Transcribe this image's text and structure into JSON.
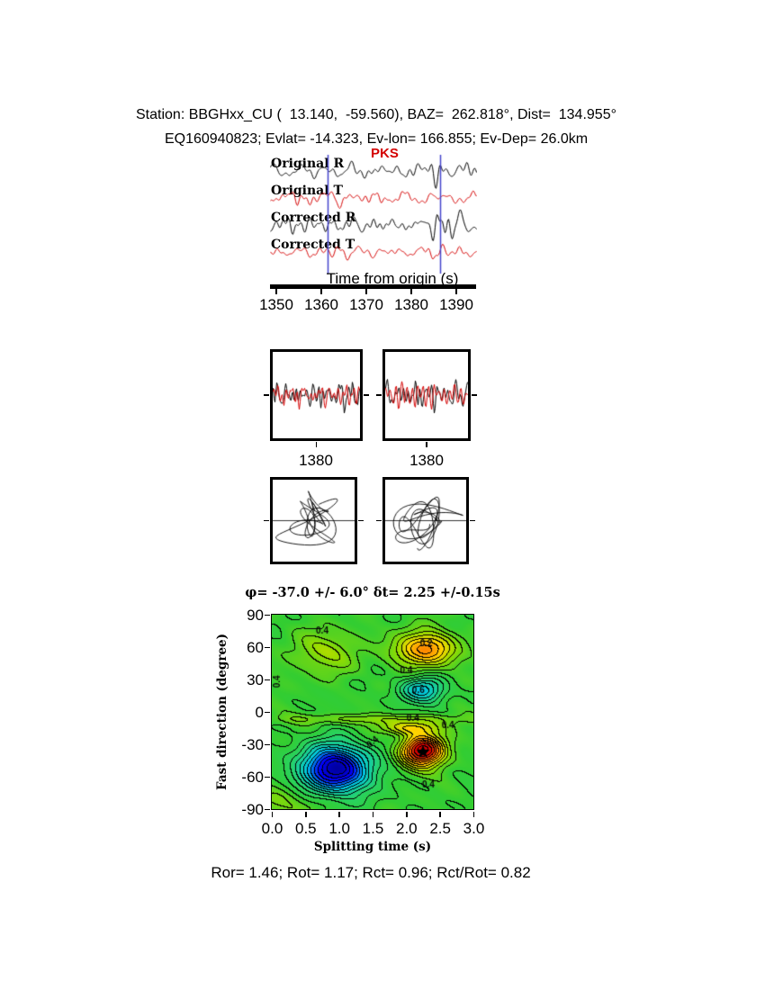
{
  "header": {
    "line1": "Station: BBGHxx_CU (  13.140,  -59.560), BAZ=  262.818°, Dist=  134.955°",
    "line2": "EQ160940823; Evlat= -14.323, Ev-lon= 166.855; Ev-Dep= 26.0km"
  },
  "footer": {
    "stats": "Ror= 1.46; Rot= 1.17; Rct= 0.96; Rct/Rot= 0.82"
  },
  "chart_data": [
    {
      "id": "waveform-traces",
      "type": "line",
      "phase_label": "PKS",
      "phase_color": "#d40000",
      "xlabel": "Time from origin (s)",
      "xlim": [
        1348.6,
        1394.6
      ],
      "xticks": [
        "1350",
        "1360",
        "1370",
        "1380",
        "1390"
      ],
      "window_lines": {
        "color": "#4444cc",
        "times": [
          1361.5,
          1386.5
        ]
      },
      "traces": [
        {
          "label": "Original R",
          "color": "#000000",
          "seed": 101,
          "amp": 11,
          "env": {
            "c": 0.84,
            "w": 0.1,
            "g": 1.1
          }
        },
        {
          "label": "Original T",
          "color": "#d40000",
          "seed": 207,
          "amp": 9,
          "env": {
            "c": 0.3,
            "w": 0.2,
            "g": 0.3
          }
        },
        {
          "label": "Corrected R",
          "color": "#000000",
          "seed": 313,
          "amp": 11,
          "env": {
            "c": 0.84,
            "w": 0.1,
            "g": 1.0
          }
        },
        {
          "label": "Corrected T",
          "color": "#d40000",
          "seed": 419,
          "amp": 8,
          "env": {
            "c": 0.5,
            "w": 0.3,
            "g": 0.2
          }
        }
      ]
    },
    {
      "id": "window-zoom",
      "type": "line",
      "panels": [
        {
          "xtick": "1380",
          "traces": [
            {
              "color": "#000000",
              "seed": 51,
              "amp": 20
            },
            {
              "color": "#d40000",
              "seed": 62,
              "amp": 16
            }
          ]
        },
        {
          "xtick": "1380",
          "traces": [
            {
              "color": "#000000",
              "seed": 73,
              "amp": 20
            },
            {
              "color": "#d40000",
              "seed": 84,
              "amp": 16
            }
          ]
        }
      ]
    },
    {
      "id": "particle-motion",
      "type": "scatter",
      "panels": [
        {
          "seed_x": 91,
          "seed_y": 15
        },
        {
          "seed_x": 27,
          "seed_y": 38
        }
      ]
    },
    {
      "id": "error-surface",
      "type": "heatmap",
      "title": "φ= -37.0 +/- 6.0° δt= 2.25 +/-0.15s",
      "xlabel": "Splitting time (s)",
      "ylabel": "Fast direction (degree)",
      "xlim": [
        0,
        3
      ],
      "ylim": [
        -90,
        90
      ],
      "xticks": [
        "0.0",
        "0.5",
        "1.0",
        "1.5",
        "2.0",
        "2.5",
        "3.0"
      ],
      "yticks": [
        "90",
        "60",
        "30",
        "0",
        "-30",
        "-60",
        "-90"
      ],
      "best_fit": {
        "phi": -37.0,
        "phi_err": 6.0,
        "dt": 2.25,
        "dt_err": 0.15
      },
      "star": {
        "x": 2.25,
        "y": -37
      },
      "base_level": 0.55,
      "contour_step": 0.045,
      "ripple": {
        "amp": 0.02,
        "fx": 6.0
      },
      "features": [
        {
          "x": 0.95,
          "y": -53,
          "amp": -0.55,
          "sx": 0.5,
          "sy": 22
        },
        {
          "x": 2.25,
          "y": -36,
          "amp": 0.5,
          "sx": 0.33,
          "sy": 15
        },
        {
          "x": 2.3,
          "y": 58,
          "amp": 0.32,
          "sx": 0.45,
          "sy": 16
        },
        {
          "x": 2.25,
          "y": 20,
          "amp": -0.25,
          "sx": 0.35,
          "sy": 12
        },
        {
          "x": 0.8,
          "y": 55,
          "amp": 0.12,
          "sx": 0.55,
          "sy": 20
        },
        {
          "x": 1.5,
          "y": -7,
          "amp": 0.1,
          "sx": 1.6,
          "sy": 5
        },
        {
          "x": 2.05,
          "y": -15,
          "amp": 0.18,
          "sx": 0.45,
          "sy": 6
        },
        {
          "x": 0.2,
          "y": -85,
          "amp": 0.1,
          "sx": 0.45,
          "sy": 15
        }
      ],
      "colormap_stops": [
        [
          0,
          "#0000a0"
        ],
        [
          0.12,
          "#0000ff"
        ],
        [
          0.28,
          "#00c8e6"
        ],
        [
          0.45,
          "#28d264"
        ],
        [
          0.55,
          "#32cd32"
        ],
        [
          0.68,
          "#96dc00"
        ],
        [
          0.78,
          "#ffd700"
        ],
        [
          0.87,
          "#ff8c00"
        ],
        [
          1,
          "#d40000"
        ]
      ],
      "contour_labels": [
        {
          "text": "0.4",
          "x": 0.75,
          "y": 75,
          "rot": 0
        },
        {
          "text": "0.4",
          "x": 0.08,
          "y": 28,
          "rot": 90
        },
        {
          "text": "0.4",
          "x": 2.0,
          "y": 38,
          "rot": 0
        },
        {
          "text": "0.6",
          "x": 2.18,
          "y": 20,
          "rot": 0
        },
        {
          "text": "0.2",
          "x": 2.3,
          "y": 63,
          "rot": 0
        },
        {
          "text": "0.4",
          "x": 2.1,
          "y": -6,
          "rot": 0
        },
        {
          "text": "0.4",
          "x": 2.62,
          "y": -13,
          "rot": 0
        },
        {
          "text": "0.4",
          "x": 2.33,
          "y": -68,
          "rot": 0
        },
        {
          "text": "0.4",
          "x": 1.5,
          "y": -28,
          "rot": 40
        }
      ]
    }
  ]
}
